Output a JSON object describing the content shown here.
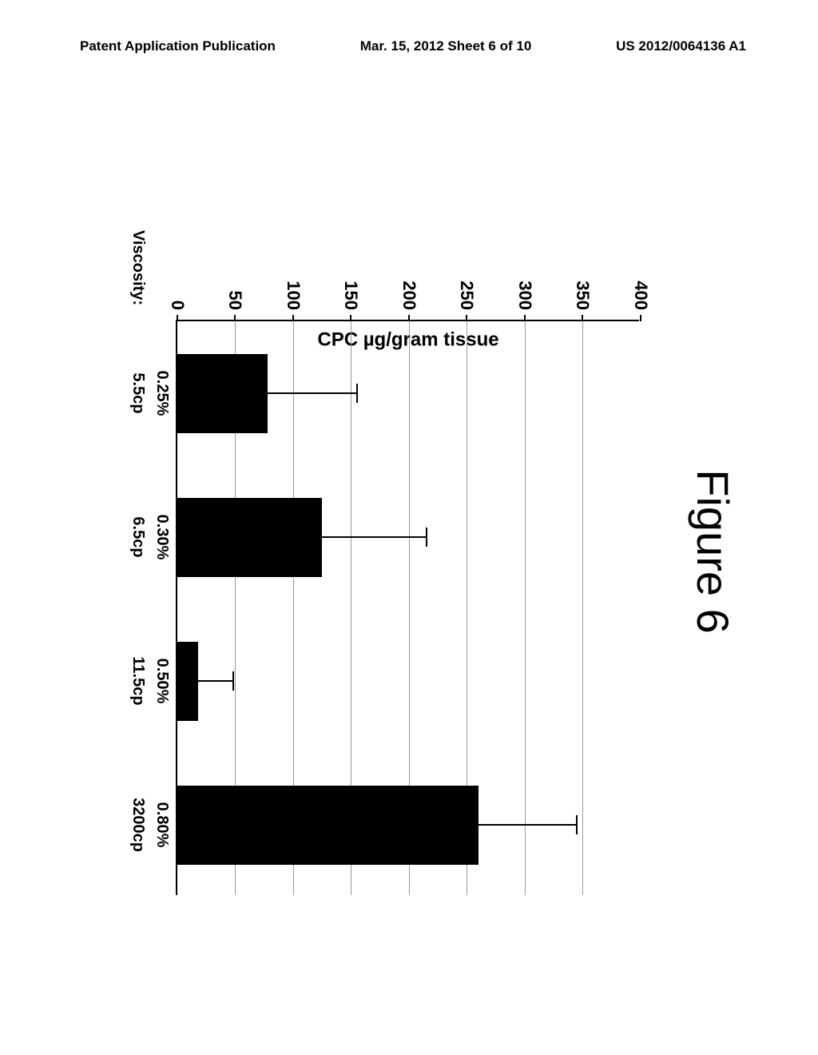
{
  "header": {
    "left": "Patent Application Publication",
    "center": "Mar. 15, 2012  Sheet 6 of 10",
    "right": "US 2012/0064136 A1"
  },
  "chart": {
    "type": "bar",
    "title": "Figure 6",
    "title_fontsize": 56,
    "y_axis_title": "CPC µg/gram tissue",
    "y_axis_fontsize": 24,
    "ylim": [
      0,
      400
    ],
    "ytick_step": 50,
    "yticks": [
      0,
      50,
      100,
      150,
      200,
      250,
      300,
      350,
      400
    ],
    "background_color": "#ffffff",
    "grid_color": "#999999",
    "bar_color": "#000000",
    "axis_color": "#000000",
    "tick_fontsize": 22,
    "label_fontsize": 20,
    "viscosity_label": "Viscosity:",
    "categories": [
      "0.25%",
      "0.30%",
      "0.50%",
      "0.80%"
    ],
    "viscosity_values": [
      "5.5cp",
      "6.5cp",
      "11.5cp",
      "3200cp"
    ],
    "bar_values": [
      78,
      125,
      18,
      260
    ],
    "error_upper": [
      155,
      215,
      48,
      345
    ],
    "bar_width_ratio": 0.55,
    "error_cap_width": 24
  }
}
